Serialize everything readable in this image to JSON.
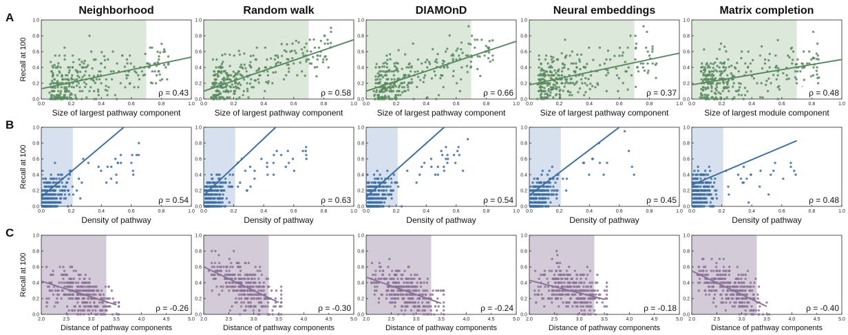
{
  "columns": [
    "Neighborhood",
    "Random walk",
    "DIAMOnD",
    "Neural embeddings",
    "Matrix completion"
  ],
  "rows": [
    {
      "label": "A",
      "ylabel": "Recall at 100",
      "color": "#5a8a60",
      "shade": "#dbe8da",
      "xlabels": [
        "Size of largest pathway component",
        "Size of largest pathway component",
        "Size of largest pathway component",
        "Size of largest pathway component",
        "Size of largest module component"
      ],
      "xlim": [
        0,
        1
      ],
      "xticks": [
        "0.0",
        "0.2",
        "0.4",
        "0.6",
        "0.8",
        "1.0"
      ],
      "shade_x": [
        0.0,
        0.7
      ],
      "rho": [
        "ρ = 0.43",
        "ρ = 0.58",
        "ρ = 0.66",
        "ρ = 0.37",
        "ρ = 0.48"
      ]
    },
    {
      "label": "B",
      "ylabel": "Recall at 100",
      "color": "#3e6fa0",
      "shade": "#d6e0ee",
      "xlabels": [
        "Density of pathway",
        "Density of pathway",
        "Density of pathway",
        "Density of pathway",
        "Density of pathway"
      ],
      "xlim": [
        0,
        1
      ],
      "xticks": [
        "0.0",
        "0.2",
        "0.4",
        "0.6",
        "0.8",
        "1.0"
      ],
      "shade_x": [
        0.0,
        0.21
      ],
      "rho": [
        "ρ = 0.54",
        "ρ = 0.63",
        "ρ = 0.54",
        "ρ = 0.45",
        "ρ = 0.48"
      ]
    },
    {
      "label": "C",
      "ylabel": "Recall at 100",
      "color": "#8c7298",
      "shade": "#d4cbd8",
      "xlabels": [
        "Distance of pathway components",
        "Distance of pathway components",
        "Distance of pathway components",
        "Distance of pathway components",
        "Distance of pathway components"
      ],
      "xlim": [
        2,
        5
      ],
      "xticks": [
        "2.0",
        "2.5",
        "3.0",
        "3.5",
        "4.0",
        "4.5",
        "5.0"
      ],
      "shade_x": [
        2.0,
        3.3
      ],
      "rho": [
        "ρ = -0.26",
        "ρ = -0.30",
        "ρ = -0.24",
        "ρ = -0.18",
        "ρ = -0.40"
      ]
    }
  ],
  "yticks": [
    "0.0",
    "0.2",
    "0.4",
    "0.6",
    "0.8",
    "1.0"
  ],
  "chart_data": [
    {
      "type": "scatter",
      "panel": "A-Neighborhood",
      "title": "Neighborhood",
      "xlabel": "Size of largest pathway component",
      "ylabel": "Recall at 100",
      "xlim": [
        0,
        1
      ],
      "ylim": [
        0,
        1
      ],
      "annotation": "ρ = 0.43",
      "fit_line": [
        [
          0.0,
          0.13
        ],
        [
          1.0,
          0.53
        ]
      ]
    },
    {
      "type": "scatter",
      "panel": "A-Random walk",
      "title": "Random walk",
      "xlabel": "Size of largest pathway component",
      "ylabel": "Recall at 100",
      "xlim": [
        0,
        1
      ],
      "ylim": [
        0,
        1
      ],
      "annotation": "ρ = 0.58",
      "fit_line": [
        [
          0.0,
          0.1
        ],
        [
          1.0,
          0.75
        ]
      ]
    },
    {
      "type": "scatter",
      "panel": "A-DIAMOnD",
      "title": "DIAMOnD",
      "xlabel": "Size of largest pathway component",
      "ylabel": "Recall at 100",
      "xlim": [
        0,
        1
      ],
      "ylim": [
        0,
        1
      ],
      "annotation": "ρ = 0.66",
      "fit_line": [
        [
          0.0,
          0.1
        ],
        [
          1.0,
          0.73
        ]
      ]
    },
    {
      "type": "scatter",
      "panel": "A-Neural embeddings",
      "title": "Neural embeddings",
      "xlabel": "Size of largest pathway component",
      "ylabel": "Recall at 100",
      "xlim": [
        0,
        1
      ],
      "ylim": [
        0,
        1
      ],
      "annotation": "ρ = 0.37",
      "fit_line": [
        [
          0.0,
          0.18
        ],
        [
          1.0,
          0.58
        ]
      ]
    },
    {
      "type": "scatter",
      "panel": "A-Matrix completion",
      "title": "Matrix completion",
      "xlabel": "Size of largest module component",
      "ylabel": "Recall at 100",
      "xlim": [
        0,
        1
      ],
      "ylim": [
        0,
        1
      ],
      "annotation": "ρ = 0.48",
      "fit_line": [
        [
          0.0,
          0.18
        ],
        [
          1.0,
          0.5
        ]
      ]
    },
    {
      "type": "scatter",
      "panel": "B-Neighborhood",
      "xlabel": "Density of pathway",
      "ylabel": "Recall at 100",
      "xlim": [
        0,
        1
      ],
      "ylim": [
        0,
        1
      ],
      "annotation": "ρ = 0.54",
      "fit_line": [
        [
          0.0,
          0.12
        ],
        [
          0.55,
          1.0
        ]
      ]
    },
    {
      "type": "scatter",
      "panel": "B-Random walk",
      "xlabel": "Density of pathway",
      "ylabel": "Recall at 100",
      "xlim": [
        0,
        1
      ],
      "ylim": [
        0,
        1
      ],
      "annotation": "ρ = 0.63",
      "fit_line": [
        [
          0.0,
          0.14
        ],
        [
          0.48,
          1.0
        ]
      ]
    },
    {
      "type": "scatter",
      "panel": "B-DIAMOnD",
      "xlabel": "Density of pathway",
      "ylabel": "Recall at 100",
      "xlim": [
        0,
        1
      ],
      "ylim": [
        0,
        1
      ],
      "annotation": "ρ = 0.54",
      "fit_line": [
        [
          0.0,
          0.12
        ],
        [
          0.52,
          1.0
        ]
      ]
    },
    {
      "type": "scatter",
      "panel": "B-Neural embeddings",
      "xlabel": "Density of pathway",
      "ylabel": "Recall at 100",
      "xlim": [
        0,
        1
      ],
      "ylim": [
        0,
        1
      ],
      "annotation": "ρ = 0.45",
      "fit_line": [
        [
          0.0,
          0.14
        ],
        [
          0.6,
          1.0
        ]
      ]
    },
    {
      "type": "scatter",
      "panel": "B-Matrix completion",
      "xlabel": "Density of pathway",
      "ylabel": "Recall at 100",
      "xlim": [
        0,
        1
      ],
      "ylim": [
        0,
        1
      ],
      "annotation": "ρ = 0.48",
      "fit_line": [
        [
          0.0,
          0.27
        ],
        [
          0.7,
          0.83
        ]
      ]
    },
    {
      "type": "scatter",
      "panel": "C-Neighborhood",
      "xlabel": "Distance of pathway components",
      "ylabel": "Recall at 100",
      "xlim": [
        2,
        5
      ],
      "ylim": [
        0,
        1
      ],
      "annotation": "ρ = -0.26",
      "fit_line": [
        [
          2.0,
          0.42
        ],
        [
          3.5,
          0.12
        ]
      ]
    },
    {
      "type": "scatter",
      "panel": "C-Random walk",
      "xlabel": "Distance of pathway components",
      "ylabel": "Recall at 100",
      "xlim": [
        2,
        5
      ],
      "ylim": [
        0,
        1
      ],
      "annotation": "ρ = -0.30",
      "fit_line": [
        [
          2.0,
          0.6
        ],
        [
          3.5,
          0.15
        ]
      ]
    },
    {
      "type": "scatter",
      "panel": "C-DIAMOnD",
      "xlabel": "Distance of pathway components",
      "ylabel": "Recall at 100",
      "xlim": [
        2,
        5
      ],
      "ylim": [
        0,
        1
      ],
      "annotation": "ρ = -0.24",
      "fit_line": [
        [
          2.0,
          0.47
        ],
        [
          3.5,
          0.14
        ]
      ]
    },
    {
      "type": "scatter",
      "panel": "C-Neural embeddings",
      "xlabel": "Distance of pathway components",
      "ylabel": "Recall at 100",
      "xlim": [
        2,
        5
      ],
      "ylim": [
        0,
        1
      ],
      "annotation": "ρ = -0.18",
      "fit_line": [
        [
          2.0,
          0.43
        ],
        [
          3.5,
          0.19
        ]
      ]
    },
    {
      "type": "scatter",
      "panel": "C-Matrix completion",
      "xlabel": "Distance of pathway components",
      "ylabel": "Recall at 100",
      "xlim": [
        2,
        5
      ],
      "ylim": [
        0,
        1
      ],
      "annotation": "ρ = -0.40",
      "fit_line": [
        [
          2.0,
          0.55
        ],
        [
          3.5,
          0.1
        ]
      ]
    }
  ]
}
